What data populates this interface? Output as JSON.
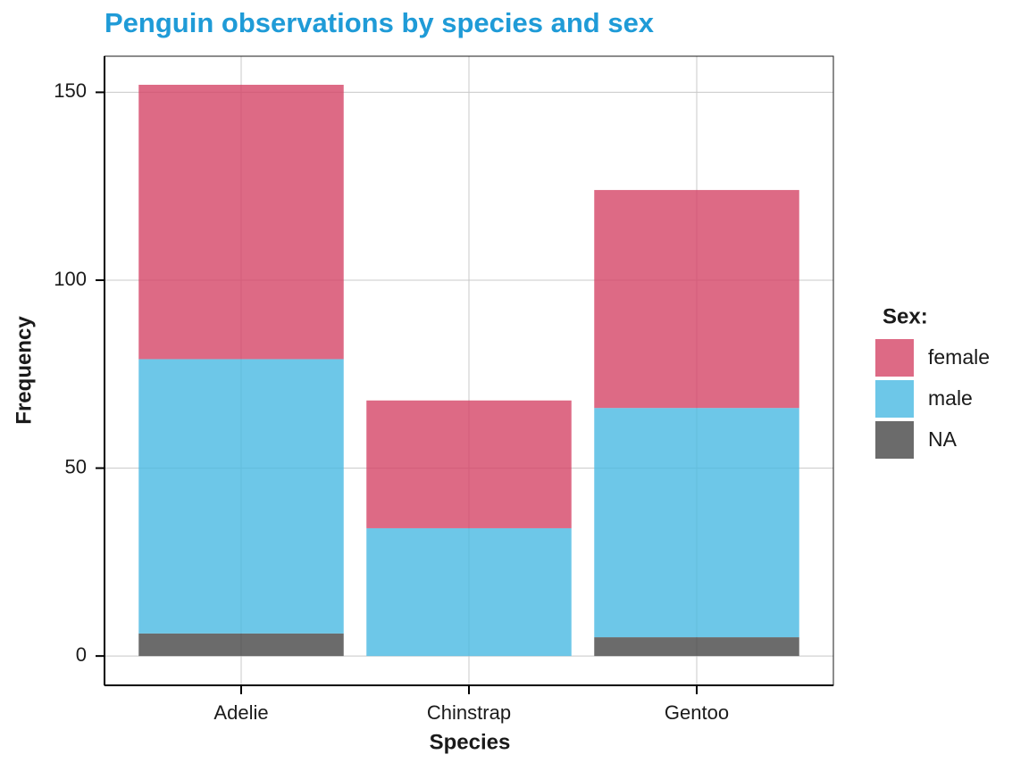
{
  "chart_data": {
    "type": "stacked_bar",
    "title": "Penguin observations by species and sex",
    "x_label": "Species",
    "y_label": "Frequency",
    "categories": [
      "Adelie",
      "Chinstrap",
      "Gentoo"
    ],
    "series": [
      {
        "name": "female",
        "color": "#d44566",
        "values": [
          73,
          34,
          58
        ]
      },
      {
        "name": "male",
        "color": "#48b9e2",
        "values": [
          73,
          34,
          61
        ]
      },
      {
        "name": "NA",
        "color": "#464646",
        "values": [
          6,
          0,
          5
        ]
      }
    ],
    "legend_title": "Sex:",
    "legend_position": "right",
    "bar_opacity": 0.8,
    "ylim": [
      -7.8,
      159.6
    ],
    "yticks": [
      0,
      50,
      100,
      150
    ],
    "grid": true
  }
}
